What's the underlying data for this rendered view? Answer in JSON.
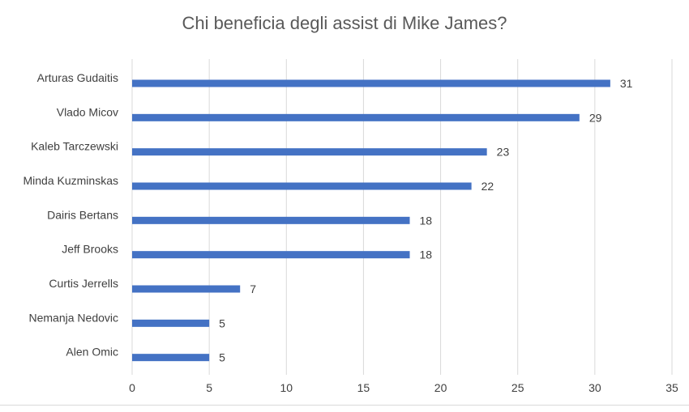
{
  "chart_data": {
    "type": "bar",
    "orientation": "horizontal",
    "title": "Chi beneficia degli assist di Mike James?",
    "categories": [
      "Arturas Gudaitis",
      "Vlado Micov",
      "Kaleb Tarczewski",
      "Minda Kuzminskas",
      "Dairis Bertans",
      "Jeff Brooks",
      "Curtis Jerrells",
      "Nemanja Nedovic",
      "Alen Omic"
    ],
    "values": [
      31,
      29,
      23,
      22,
      18,
      18,
      7,
      5,
      5
    ],
    "xlim": [
      0,
      35
    ],
    "x_ticks": [
      0,
      5,
      10,
      15,
      20,
      25,
      30,
      35
    ],
    "xlabel": "",
    "ylabel": "",
    "grid": "vertical",
    "data_labels": true,
    "legend": "none",
    "bar_color": "#4472C4",
    "grid_color": "#d9d9d9",
    "text_color": "#404040"
  }
}
